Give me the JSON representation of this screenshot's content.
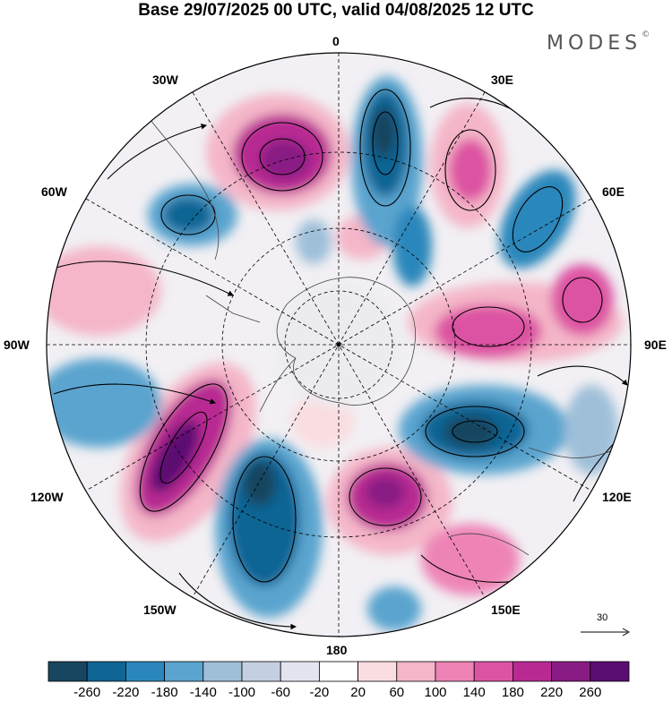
{
  "title": "Base 29/07/2025 00 UTC, valid 04/08/2025 12 UTC",
  "brand": {
    "name": "MODES",
    "mark": "©"
  },
  "map_labels": {
    "lon_0": "0",
    "lon_30e": "30E",
    "lon_60e": "60E",
    "lon_90e": "90E",
    "lon_120e": "120E",
    "lon_150e": "150E",
    "lon_180": "180",
    "lon_150w": "150W",
    "lon_120w": "120W",
    "lon_90w": "90W",
    "lon_60w": "60W",
    "lon_30w": "30W"
  },
  "vector_reference": {
    "label": "30"
  },
  "colorbar": {
    "colors": [
      "#18455f",
      "#0f6594",
      "#2b87bb",
      "#5aa4cf",
      "#9fbfd9",
      "#c4cfe1",
      "#e4e4f0",
      "#ffffff",
      "#f9dde0",
      "#f4b6c8",
      "#ee84b6",
      "#dd53a3",
      "#b82a92",
      "#891b84",
      "#5b0e72"
    ],
    "ticks": [
      "-260",
      "-220",
      "-180",
      "-140",
      "-100",
      "-60",
      "-20",
      "20",
      "60",
      "100",
      "140",
      "180",
      "220",
      "260"
    ]
  }
}
